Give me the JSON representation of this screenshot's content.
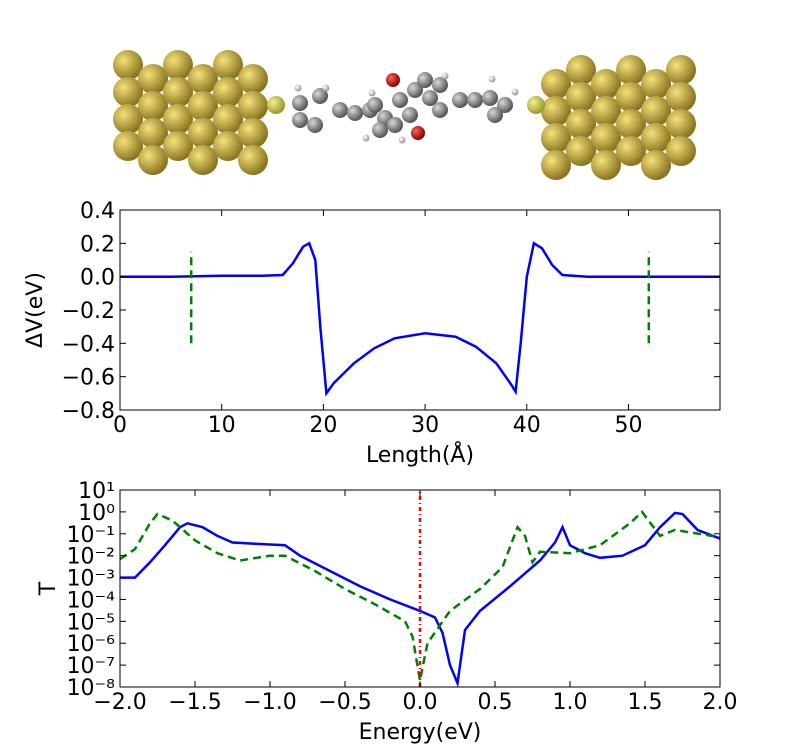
{
  "chart_data": [
    {
      "type": "line",
      "xlabel": "Length(Å)",
      "ylabel": "ΔV(eV)",
      "xlim": [
        0,
        59
      ],
      "xticks": [
        0,
        10,
        20,
        30,
        40,
        50
      ],
      "ylim": [
        -0.8,
        0.4
      ],
      "yticks": [
        {
          "value": -0.8,
          "label": "−0.8"
        },
        {
          "value": -0.6,
          "label": "−0.6"
        },
        {
          "value": -0.4,
          "label": "−0.4"
        },
        {
          "value": -0.2,
          "label": "−0.2"
        },
        {
          "value": 0,
          "label": "0.0"
        },
        {
          "value": 0.2,
          "label": "0.2"
        },
        {
          "value": 0.4,
          "label": "0.4"
        }
      ],
      "series": [
        {
          "color": "#0000ff",
          "style": "solid",
          "x": [
            0,
            5,
            10,
            14,
            16,
            17,
            18,
            18.6,
            19.2,
            19.7,
            20.3,
            21,
            23,
            25,
            27,
            30,
            33,
            35,
            37,
            38.5,
            38.9,
            39.4,
            40,
            40.7,
            41.5,
            42.5,
            43.5,
            46,
            59
          ],
          "values": [
            0,
            0,
            0.005,
            0.005,
            0.01,
            0.08,
            0.18,
            0.2,
            0.1,
            -0.3,
            -0.7,
            -0.64,
            -0.52,
            -0.43,
            -0.37,
            -0.34,
            -0.36,
            -0.42,
            -0.52,
            -0.65,
            -0.69,
            -0.4,
            0,
            0.2,
            0.17,
            0.07,
            0.01,
            0,
            0
          ]
        },
        {
          "color": "#008000",
          "style": "dashed",
          "x": [
            7,
            7
          ],
          "values": [
            -0.4,
            0.15
          ]
        },
        {
          "color": "#008000",
          "style": "dashed",
          "x": [
            52,
            52
          ],
          "values": [
            -0.4,
            0.15
          ]
        }
      ]
    },
    {
      "type": "line",
      "xlabel": "Energy(eV)",
      "ylabel": "T",
      "log_y": true,
      "xlim": [
        -2,
        2
      ],
      "xticks": [
        {
          "value": -2,
          "label": "−2.0"
        },
        {
          "value": -1.5,
          "label": "−1.5"
        },
        {
          "value": -1,
          "label": "−1.0"
        },
        {
          "value": -0.5,
          "label": "−0.5"
        },
        {
          "value": 0,
          "label": "0.0"
        },
        0.5,
        {
          "value": 1,
          "label": "1.0"
        },
        1.5,
        {
          "value": 2,
          "label": "2.0"
        }
      ],
      "ylim": [
        1e-08,
        10
      ],
      "yticks": [
        {
          "value": 1e-08,
          "label": "10⁻⁸"
        },
        {
          "value": 1e-07,
          "label": "10⁻⁷"
        },
        {
          "value": 1e-06,
          "label": "10⁻⁶"
        },
        {
          "value": 1e-05,
          "label": "10⁻⁵"
        },
        {
          "value": 0.0001,
          "label": "10⁻⁴"
        },
        {
          "value": 0.001,
          "label": "10⁻³"
        },
        {
          "value": 0.01,
          "label": "10⁻²"
        },
        {
          "value": 0.1,
          "label": "10⁻¹"
        },
        {
          "value": 1,
          "label": "10⁰"
        },
        {
          "value": 10,
          "label": "10¹"
        }
      ],
      "series": [
        {
          "color": "#0000ff",
          "style": "solid",
          "x": [
            -2,
            -1.9,
            -1.8,
            -1.7,
            -1.6,
            -1.55,
            -1.45,
            -1.35,
            -1.25,
            -1.1,
            -0.9,
            -0.8,
            -0.6,
            -0.4,
            -0.2,
            0,
            0.1,
            0.15,
            0.2,
            0.25,
            0.3,
            0.4,
            0.6,
            0.8,
            0.9,
            0.95,
            1,
            1.1,
            1.2,
            1.35,
            1.5,
            1.6,
            1.7,
            1.75,
            1.85,
            2
          ],
          "values": [
            0.001,
            0.001,
            0.005,
            0.03,
            0.2,
            0.3,
            0.2,
            0.08,
            0.04,
            0.035,
            0.03,
            0.01,
            0.002,
            0.0004,
            0.0001,
            3e-05,
            1.5e-05,
            3e-06,
            1e-07,
            1.5e-08,
            4e-06,
            3e-05,
            0.0004,
            0.006,
            0.04,
            0.2,
            0.03,
            0.013,
            0.008,
            0.01,
            0.03,
            0.2,
            0.9,
            0.8,
            0.15,
            0.06
          ]
        },
        {
          "color": "#008000",
          "style": "dashed",
          "x": [
            -2,
            -1.9,
            -1.8,
            -1.75,
            -1.65,
            -1.5,
            -1.35,
            -1.2,
            -1,
            -0.9,
            -0.7,
            -0.5,
            -0.3,
            -0.1,
            -0.05,
            0,
            0.05,
            0.2,
            0.4,
            0.55,
            0.65,
            0.7,
            0.75,
            0.8,
            1,
            1.2,
            1.4,
            1.48,
            1.6,
            1.7,
            1.9,
            2
          ],
          "values": [
            0.007,
            0.02,
            0.3,
            0.8,
            0.4,
            0.05,
            0.013,
            0.006,
            0.01,
            0.01,
            0.002,
            0.0003,
            6e-05,
            1e-05,
            2e-06,
            2e-08,
            1e-06,
            3e-05,
            0.0003,
            0.003,
            0.2,
            0.08,
            0.005,
            0.015,
            0.013,
            0.03,
            0.3,
            1,
            0.08,
            0.15,
            0.09,
            0.07
          ]
        },
        {
          "color": "#ff0000",
          "style": "dashdot",
          "x": [
            0,
            0
          ],
          "values": [
            1e-08,
            10
          ]
        }
      ]
    }
  ]
}
